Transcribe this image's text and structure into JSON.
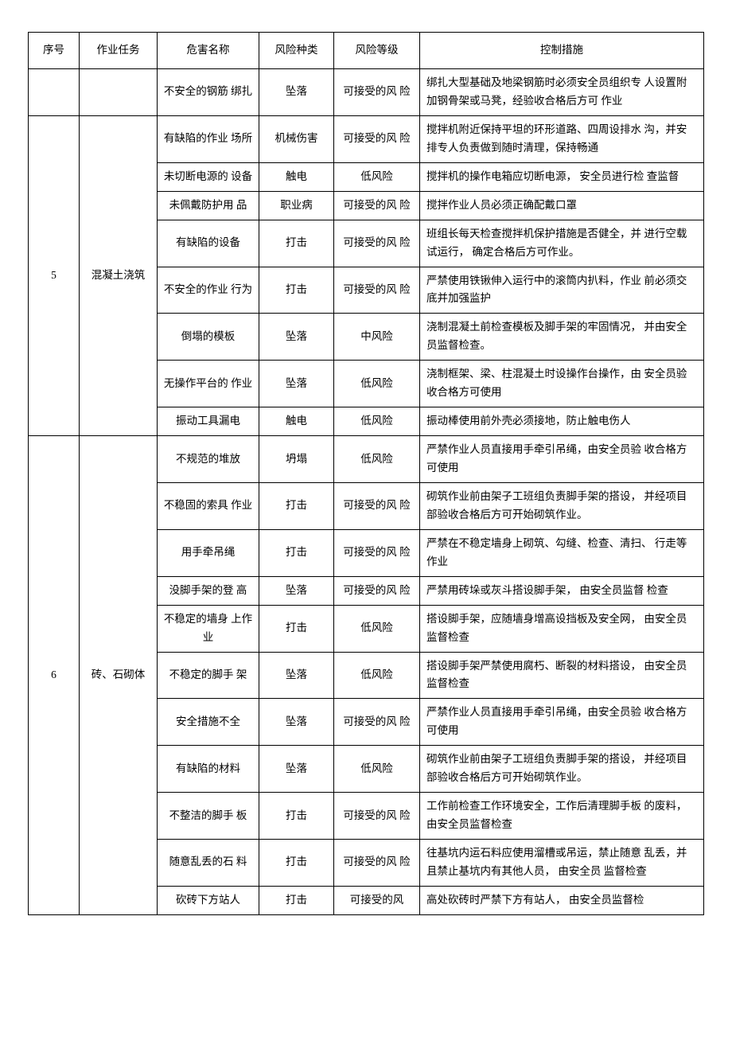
{
  "columns": {
    "seq": "序号",
    "task": "作业任务",
    "haz": "危害名称",
    "type": "风险种类",
    "lvl": "风险等级",
    "ctrl": "控制措施"
  },
  "rows": [
    {
      "seq": "",
      "task": "",
      "seq_span": 1,
      "task_span": 1,
      "haz": "不安全的钢筋 绑扎",
      "type": "坠落",
      "lvl": "可接受的风 险",
      "ctrl": "绑扎大型基础及地梁钢筋时必须安全员组织专 人设置附加钢骨架或马凳，经验收合格后方可 作业"
    },
    {
      "seq": "5",
      "task": "混凝土浇筑",
      "seq_span": 8,
      "task_span": 8,
      "haz": "有缺陷的作业 场所",
      "type": "机械伤害",
      "lvl": "可接受的风 险",
      "ctrl": "搅拌机附近保持平坦的环形道路、四周设排水 沟，并安排专人负责做到随时清理，保持畅通"
    },
    {
      "haz": "未切断电源的 设备",
      "type": "触电",
      "lvl": "低风险",
      "ctrl": "搅拌机的操作电箱应切断电源， 安全员进行检 查监督"
    },
    {
      "haz": "未佩戴防护用 品",
      "type": "职业病",
      "lvl": "可接受的风 险",
      "ctrl": "搅拌作业人员必须正确配戴口罩"
    },
    {
      "haz": "有缺陷的设备",
      "type": "打击",
      "lvl": "可接受的风 险",
      "ctrl": "班组长每天检查搅拌机保护措施是否健全，并 进行空载试运行， 确定合格后方可作业。"
    },
    {
      "haz": "不安全的作业 行为",
      "type": "打击",
      "lvl": "可接受的风 险",
      "ctrl": "严禁使用铁锹伸入运行中的滚筒内扒料，作业 前必须交底并加强监护"
    },
    {
      "haz": "倒塌的模板",
      "type": "坠落",
      "lvl": "中风险",
      "ctrl": "浇制混凝土前检查模板及脚手架的牢固情况，   并由安全员监督检查。"
    },
    {
      "haz": "无操作平台的 作业",
      "type": "坠落",
      "lvl": "低风险",
      "ctrl": "浇制框架、梁、柱混凝土时设操作台操作，由 安全员验收合格方可使用"
    },
    {
      "haz": "振动工具漏电",
      "type": "触电",
      "lvl": "低风险",
      "ctrl": "振动棒使用前外壳必须接地，防止触电伤人"
    },
    {
      "seq": "6",
      "task": "砖、石砌体",
      "seq_span": 11,
      "task_span": 11,
      "haz": "不规范的堆放",
      "type": "坍塌",
      "lvl": "低风险",
      "ctrl": "严禁作业人员直接用手牵引吊绳，由安全员验 收合格方可使用"
    },
    {
      "haz": "不稳固的索具 作业",
      "type": "打击",
      "lvl": "可接受的风 险",
      "ctrl": "砌筑作业前由架子工班组负责脚手架的搭设， 并经项目部验收合格后方可开始砌筑作业。"
    },
    {
      "haz": "用手牵吊绳",
      "type": "打击",
      "lvl": "可接受的风 险",
      "ctrl": "严禁在不稳定墙身上砌筑、勾缝、检查、清扫、 行走等作业"
    },
    {
      "haz": "没脚手架的登 高",
      "type": "坠落",
      "lvl": "可接受的风 险",
      "ctrl": "严禁用砖垛或灰斗搭设脚手架， 由安全员监督 检查"
    },
    {
      "haz": "不稳定的墙身 上作业",
      "type": "打击",
      "lvl": "低风险",
      "ctrl": "搭设脚手架，应随墙身增高设挡板及安全网，   由安全员监督检查"
    },
    {
      "haz": "不稳定的脚手 架",
      "type": "坠落",
      "lvl": "低风险",
      "ctrl": "搭设脚手架严禁使用腐朽、断裂的材料搭设，   由安全员监督检查"
    },
    {
      "haz": "安全措施不全",
      "type": "坠落",
      "lvl": "可接受的风 险",
      "ctrl": "严禁作业人员直接用手牵引吊绳，由安全员验 收合格方可使用"
    },
    {
      "haz": "有缺陷的材料",
      "type": "坠落",
      "lvl": "低风险",
      "ctrl": "砌筑作业前由架子工班组负责脚手架的搭设， 并经项目部验收合格后方可开始砌筑作业。"
    },
    {
      "haz": "不整洁的脚手 板",
      "type": "打击",
      "lvl": "可接受的风 险",
      "ctrl": "工作前检查工作环境安全，工作后清理脚手板 的废料，由安全员监督检查"
    },
    {
      "haz": "随意乱丢的石 料",
      "type": "打击",
      "lvl": "可接受的风 险",
      "ctrl": "往基坑内运石料应使用溜槽或吊运，禁止随意 乱丢，并且禁止基坑内有其他人员， 由安全员 监督检查"
    },
    {
      "haz": "砍砖下方站人",
      "type": "打击",
      "lvl": "可接受的风",
      "ctrl": "高处砍砖时严禁下方有站人， 由安全员监督检"
    }
  ]
}
